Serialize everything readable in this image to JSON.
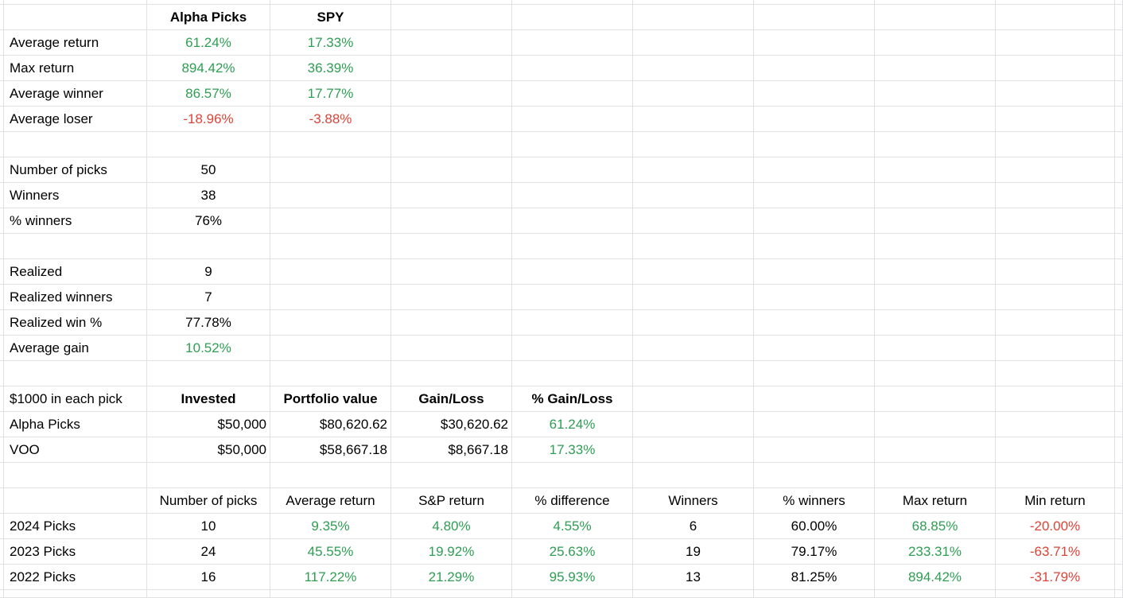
{
  "colors": {
    "positive": "#2e9e53",
    "negative": "#dc4437",
    "text": "#000000",
    "gridline": "#dfe1e3",
    "background": "#ffffff"
  },
  "summary_table": {
    "columns": [
      "",
      "Alpha Picks",
      "SPY"
    ],
    "rows": [
      {
        "label": "Average return",
        "alpha_picks": "61.24%",
        "spy": "17.33%"
      },
      {
        "label": "Max return",
        "alpha_picks": "894.42%",
        "spy": "36.39%"
      },
      {
        "label": "Average winner",
        "alpha_picks": "86.57%",
        "spy": "17.77%"
      },
      {
        "label": "Average loser",
        "alpha_picks": "-18.96%",
        "spy": "-3.88%"
      }
    ]
  },
  "picks_stats": [
    {
      "label": "Number of picks",
      "value": "50"
    },
    {
      "label": "Winners",
      "value": "38"
    },
    {
      "label": "% winners",
      "value": "76%"
    }
  ],
  "realized_stats": [
    {
      "label": "Realized",
      "value": "9"
    },
    {
      "label": "Realized winners",
      "value": "7"
    },
    {
      "label": "Realized win %",
      "value": "77.78%"
    },
    {
      "label": "Average gain",
      "value": "10.52%"
    }
  ],
  "portfolio_table": {
    "title": "$1000 in each pick",
    "columns": [
      "Invested",
      "Portfolio value",
      "Gain/Loss",
      "% Gain/Loss"
    ],
    "rows": [
      {
        "label": "Alpha Picks",
        "invested": "$50,000",
        "portfolio_value": "$80,620.62",
        "gain_loss": "$30,620.62",
        "pct_gain_loss": "61.24%"
      },
      {
        "label": "VOO",
        "invested": "$50,000",
        "portfolio_value": "$58,667.18",
        "gain_loss": "$8,667.18",
        "pct_gain_loss": "17.33%"
      }
    ]
  },
  "yearly_table": {
    "columns": [
      "",
      "Number of picks",
      "Average return",
      "S&P return",
      "% difference",
      "Winners",
      "% winners",
      "Max return",
      "Min return"
    ],
    "rows": [
      {
        "label": "2024 Picks",
        "number_of_picks": "10",
        "average_return": "9.35%",
        "sp_return": "4.80%",
        "pct_difference": "4.55%",
        "winners": "6",
        "pct_winners": "60.00%",
        "max_return": "68.85%",
        "min_return": "-20.00%"
      },
      {
        "label": "2023 Picks",
        "number_of_picks": "24",
        "average_return": "45.55%",
        "sp_return": "19.92%",
        "pct_difference": "25.63%",
        "winners": "19",
        "pct_winners": "79.17%",
        "max_return": "233.31%",
        "min_return": "-63.71%"
      },
      {
        "label": "2022 Picks",
        "number_of_picks": "16",
        "average_return": "117.22%",
        "sp_return": "21.29%",
        "pct_difference": "95.93%",
        "winners": "13",
        "pct_winners": "81.25%",
        "max_return": "894.42%",
        "min_return": "-31.79%"
      }
    ]
  },
  "sheet": {
    "rows": [
      {
        "cells": []
      },
      {
        "cells": [
          {
            "c": 2,
            "t": "Alpha Picks",
            "s": "head"
          },
          {
            "c": 3,
            "t": "SPY",
            "s": "head"
          }
        ]
      },
      {
        "cells": [
          {
            "c": 1,
            "t": "Average return",
            "s": "label"
          },
          {
            "c": 2,
            "t": "61.24%",
            "s": "pos"
          },
          {
            "c": 3,
            "t": "17.33%",
            "s": "pos"
          }
        ]
      },
      {
        "cells": [
          {
            "c": 1,
            "t": "Max return",
            "s": "label"
          },
          {
            "c": 2,
            "t": "894.42%",
            "s": "pos"
          },
          {
            "c": 3,
            "t": "36.39%",
            "s": "pos"
          }
        ]
      },
      {
        "cells": [
          {
            "c": 1,
            "t": "Average winner",
            "s": "label"
          },
          {
            "c": 2,
            "t": "86.57%",
            "s": "pos"
          },
          {
            "c": 3,
            "t": "17.77%",
            "s": "pos"
          }
        ]
      },
      {
        "cells": [
          {
            "c": 1,
            "t": "Average loser",
            "s": "label"
          },
          {
            "c": 2,
            "t": "-18.96%",
            "s": "neg"
          },
          {
            "c": 3,
            "t": "-3.88%",
            "s": "neg"
          }
        ]
      },
      {
        "cells": []
      },
      {
        "cells": [
          {
            "c": 1,
            "t": "Number of picks",
            "s": "label"
          },
          {
            "c": 2,
            "t": "50",
            "s": "num"
          }
        ]
      },
      {
        "cells": [
          {
            "c": 1,
            "t": "Winners",
            "s": "label"
          },
          {
            "c": 2,
            "t": "38",
            "s": "num"
          }
        ]
      },
      {
        "cells": [
          {
            "c": 1,
            "t": "% winners",
            "s": "label"
          },
          {
            "c": 2,
            "t": "76%",
            "s": "num"
          }
        ]
      },
      {
        "cells": []
      },
      {
        "cells": [
          {
            "c": 1,
            "t": "Realized",
            "s": "label"
          },
          {
            "c": 2,
            "t": "9",
            "s": "num"
          }
        ]
      },
      {
        "cells": [
          {
            "c": 1,
            "t": "Realized winners",
            "s": "label"
          },
          {
            "c": 2,
            "t": "7",
            "s": "num"
          }
        ]
      },
      {
        "cells": [
          {
            "c": 1,
            "t": "Realized win %",
            "s": "label"
          },
          {
            "c": 2,
            "t": "77.78%",
            "s": "num"
          }
        ]
      },
      {
        "cells": [
          {
            "c": 1,
            "t": "Average gain",
            "s": "label"
          },
          {
            "c": 2,
            "t": "10.52%",
            "s": "pos"
          }
        ]
      },
      {
        "cells": []
      },
      {
        "cells": [
          {
            "c": 1,
            "t": "$1000 in each pick",
            "s": "label"
          },
          {
            "c": 2,
            "t": "Invested",
            "s": "head"
          },
          {
            "c": 3,
            "t": "Portfolio value",
            "s": "head"
          },
          {
            "c": 4,
            "t": "Gain/Loss",
            "s": "head"
          },
          {
            "c": 5,
            "t": "% Gain/Loss",
            "s": "head"
          }
        ]
      },
      {
        "cells": [
          {
            "c": 1,
            "t": "Alpha Picks",
            "s": "label"
          },
          {
            "c": 2,
            "t": "$50,000",
            "s": "money"
          },
          {
            "c": 3,
            "t": "$80,620.62",
            "s": "money"
          },
          {
            "c": 4,
            "t": "$30,620.62",
            "s": "money"
          },
          {
            "c": 5,
            "t": "61.24%",
            "s": "pos"
          }
        ]
      },
      {
        "cells": [
          {
            "c": 1,
            "t": "VOO",
            "s": "label"
          },
          {
            "c": 2,
            "t": "$50,000",
            "s": "money"
          },
          {
            "c": 3,
            "t": "$58,667.18",
            "s": "money"
          },
          {
            "c": 4,
            "t": "$8,667.18",
            "s": "money"
          },
          {
            "c": 5,
            "t": "17.33%",
            "s": "pos"
          }
        ]
      },
      {
        "cells": []
      },
      {
        "cells": [
          {
            "c": 2,
            "t": "Number of picks",
            "s": "num"
          },
          {
            "c": 3,
            "t": "Average return",
            "s": "num"
          },
          {
            "c": 4,
            "t": "S&P return",
            "s": "num"
          },
          {
            "c": 5,
            "t": "% difference",
            "s": "num"
          },
          {
            "c": 6,
            "t": "Winners",
            "s": "num"
          },
          {
            "c": 7,
            "t": "% winners",
            "s": "num"
          },
          {
            "c": 8,
            "t": "Max return",
            "s": "num"
          },
          {
            "c": 9,
            "t": "Min return",
            "s": "num"
          }
        ]
      },
      {
        "cells": [
          {
            "c": 1,
            "t": "2024 Picks",
            "s": "label"
          },
          {
            "c": 2,
            "t": "10",
            "s": "num"
          },
          {
            "c": 3,
            "t": "9.35%",
            "s": "pos"
          },
          {
            "c": 4,
            "t": "4.80%",
            "s": "pos"
          },
          {
            "c": 5,
            "t": "4.55%",
            "s": "pos"
          },
          {
            "c": 6,
            "t": "6",
            "s": "num"
          },
          {
            "c": 7,
            "t": "60.00%",
            "s": "num"
          },
          {
            "c": 8,
            "t": "68.85%",
            "s": "pos"
          },
          {
            "c": 9,
            "t": "-20.00%",
            "s": "neg"
          }
        ]
      },
      {
        "cells": [
          {
            "c": 1,
            "t": "2023 Picks",
            "s": "label"
          },
          {
            "c": 2,
            "t": "24",
            "s": "num"
          },
          {
            "c": 3,
            "t": "45.55%",
            "s": "pos"
          },
          {
            "c": 4,
            "t": "19.92%",
            "s": "pos"
          },
          {
            "c": 5,
            "t": "25.63%",
            "s": "pos"
          },
          {
            "c": 6,
            "t": "19",
            "s": "num"
          },
          {
            "c": 7,
            "t": "79.17%",
            "s": "num"
          },
          {
            "c": 8,
            "t": "233.31%",
            "s": "pos"
          },
          {
            "c": 9,
            "t": "-63.71%",
            "s": "neg"
          }
        ]
      },
      {
        "cells": [
          {
            "c": 1,
            "t": "2022 Picks",
            "s": "label"
          },
          {
            "c": 2,
            "t": "16",
            "s": "num"
          },
          {
            "c": 3,
            "t": "117.22%",
            "s": "pos"
          },
          {
            "c": 4,
            "t": "21.29%",
            "s": "pos"
          },
          {
            "c": 5,
            "t": "95.93%",
            "s": "pos"
          },
          {
            "c": 6,
            "t": "13",
            "s": "num"
          },
          {
            "c": 7,
            "t": "81.25%",
            "s": "num"
          },
          {
            "c": 8,
            "t": "894.42%",
            "s": "pos"
          },
          {
            "c": 9,
            "t": "-31.79%",
            "s": "neg"
          }
        ]
      },
      {
        "cells": []
      }
    ]
  }
}
